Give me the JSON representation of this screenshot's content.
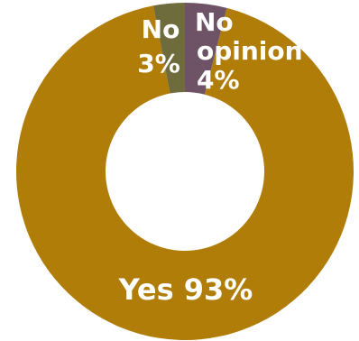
{
  "chart_data": {
    "type": "pie",
    "donut": true,
    "title": "",
    "slices": [
      {
        "label": "Yes",
        "value": 93,
        "display": "Yes 93%",
        "color": "#B07D08"
      },
      {
        "label": "No",
        "value": 3,
        "display": "No 3%",
        "color": "#6E6B3C"
      },
      {
        "label": "No opinion",
        "value": 4,
        "display": "No opinion 4%",
        "color": "#6E5366"
      }
    ],
    "labels_text": {
      "yes": "Yes 93%",
      "no_line1": "No",
      "no_line2": "3%",
      "noop_line1": "No",
      "noop_line2": "opinion",
      "noop_line3": "4%"
    },
    "legend": "none"
  }
}
